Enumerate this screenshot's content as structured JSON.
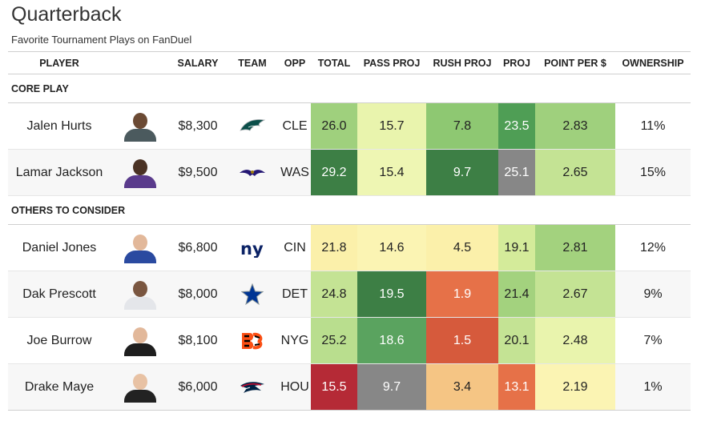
{
  "header": {
    "title": "Quarterback",
    "subtitle": "Favorite Tournament Plays on FanDuel"
  },
  "columns": [
    "PLAYER",
    "",
    "SALARY",
    "TEAM",
    "OPP",
    "TOTAL",
    "PASS PROJ",
    "RUSH PROJ",
    "PROJ",
    "POINT PER $",
    "OWNERSHIP"
  ],
  "sections": [
    {
      "label": "CORE PLAY",
      "rows": [
        {
          "player": "Jalen Hurts",
          "salary": "$8,300",
          "team_icon": "eagles-logo-icon",
          "opp": "CLE",
          "total": "26.0",
          "pass": "15.7",
          "rush": "7.8",
          "proj": "23.5",
          "ppd": "2.83",
          "own": "11%",
          "colors": {
            "total": "#9fd07d",
            "pass": "#e9f4ad",
            "rush": "#8ec872",
            "proj": "#4f9e55",
            "ppd": "#9fd07d"
          },
          "avatar": {
            "skin": "#6b4a34",
            "jersey": "#4b5a5e"
          }
        },
        {
          "player": "Lamar Jackson",
          "salary": "$9,500",
          "team_icon": "ravens-logo-icon",
          "opp": "WAS",
          "total": "29.2",
          "pass": "15.4",
          "rush": "9.7",
          "proj": "25.1",
          "ppd": "2.65",
          "own": "15%",
          "colors": {
            "total": "#3d7f45",
            "pass": "#eef6b3",
            "rush": "#3d7f45",
            "proj": "#878787",
            "ppd": "#c4e394"
          },
          "avatar": {
            "skin": "#4a3224",
            "jersey": "#5a3b8c"
          }
        }
      ]
    },
    {
      "label": "OTHERS TO CONSIDER",
      "rows": [
        {
          "player": "Daniel Jones",
          "salary": "$6,800",
          "team_icon": "giants-logo-icon",
          "opp": "CIN",
          "total": "21.8",
          "pass": "14.6",
          "rush": "4.5",
          "proj": "19.1",
          "ppd": "2.81",
          "own": "12%",
          "colors": {
            "total": "#fbf0aa",
            "pass": "#fbf4b3",
            "rush": "#fbf0aa",
            "proj": "#d4eb9a",
            "ppd": "#a3d27e"
          },
          "avatar": {
            "skin": "#e2b89a",
            "jersey": "#2a4aa0"
          }
        },
        {
          "player": "Dak Prescott",
          "salary": "$8,000",
          "team_icon": "cowboys-logo-icon",
          "opp": "DET",
          "total": "24.8",
          "pass": "19.5",
          "rush": "1.9",
          "proj": "21.4",
          "ppd": "2.67",
          "own": "9%",
          "colors": {
            "total": "#c4e394",
            "pass": "#3d7f45",
            "rush": "#e67148",
            "proj": "#a3d27e",
            "ppd": "#c4e394"
          },
          "avatar": {
            "skin": "#7a5640",
            "jersey": "#e4e6ea"
          }
        },
        {
          "player": "Joe Burrow",
          "salary": "$8,100",
          "team_icon": "bengals-logo-icon",
          "opp": "NYG",
          "total": "25.2",
          "pass": "18.6",
          "rush": "1.5",
          "proj": "20.1",
          "ppd": "2.48",
          "own": "7%",
          "colors": {
            "total": "#b9de8e",
            "pass": "#5aa35f",
            "rush": "#d65a3c",
            "proj": "#c4e394",
            "ppd": "#e9f4ad"
          },
          "avatar": {
            "skin": "#e2b89a",
            "jersey": "#1e1e1e"
          }
        },
        {
          "player": "Drake Maye",
          "salary": "$6,000",
          "team_icon": "patriots-logo-icon",
          "opp": "HOU",
          "total": "15.5",
          "pass": "9.7",
          "rush": "3.4",
          "proj": "13.1",
          "ppd": "2.19",
          "own": "1%",
          "colors": {
            "total": "#b52a36",
            "pass": "#878787",
            "rush": "#f5c584",
            "proj": "#e67148",
            "ppd": "#fbf4b3"
          },
          "avatar": {
            "skin": "#e8c2a4",
            "jersey": "#222222"
          }
        }
      ]
    }
  ]
}
